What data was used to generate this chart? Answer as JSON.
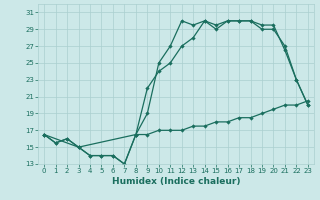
{
  "xlabel": "Humidex (Indice chaleur)",
  "ylabel": "",
  "xlim": [
    -0.5,
    23.5
  ],
  "ylim": [
    13,
    32
  ],
  "yticks": [
    13,
    15,
    17,
    19,
    21,
    23,
    25,
    27,
    29,
    31
  ],
  "xticks": [
    0,
    1,
    2,
    3,
    4,
    5,
    6,
    7,
    8,
    9,
    10,
    11,
    12,
    13,
    14,
    15,
    16,
    17,
    18,
    19,
    20,
    21,
    22,
    23
  ],
  "bg_color": "#cce8e8",
  "grid_color": "#aacfcf",
  "line_color": "#1a6e5e",
  "line1_x": [
    0,
    1,
    2,
    3,
    4,
    5,
    6,
    7,
    8,
    9,
    10,
    11,
    12,
    13,
    14,
    15,
    16,
    17,
    18,
    19,
    20,
    21,
    22,
    23
  ],
  "line1_y": [
    16.5,
    15.5,
    16,
    15,
    14,
    14,
    14,
    13,
    16.5,
    19,
    25,
    27,
    30,
    29.5,
    30,
    29.5,
    30,
    30,
    30,
    29.5,
    29.5,
    26.5,
    23,
    20
  ],
  "line2_x": [
    0,
    1,
    2,
    3,
    4,
    5,
    6,
    7,
    8,
    9,
    10,
    11,
    12,
    13,
    14,
    15,
    16,
    17,
    18,
    19,
    20,
    21,
    22,
    23
  ],
  "line2_y": [
    16.5,
    15.5,
    16,
    15,
    14,
    14,
    14,
    13,
    16.5,
    22,
    24,
    25,
    27,
    28,
    30,
    29,
    30,
    30,
    30,
    29,
    29,
    27,
    23,
    20
  ],
  "line3_x": [
    0,
    3,
    8,
    9,
    10,
    11,
    12,
    13,
    14,
    15,
    16,
    17,
    18,
    19,
    20,
    21,
    22,
    23
  ],
  "line3_y": [
    16.5,
    15,
    16.5,
    16.5,
    17,
    17,
    17,
    17.5,
    17.5,
    18,
    18,
    18.5,
    18.5,
    19,
    19.5,
    20,
    20,
    20.5
  ]
}
